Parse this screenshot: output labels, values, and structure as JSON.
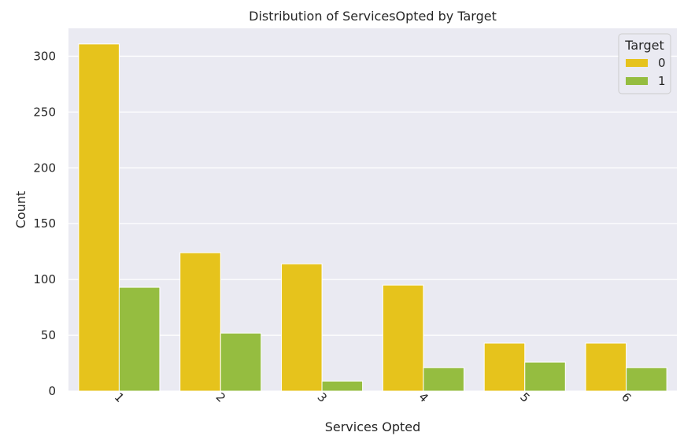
{
  "chart_data": {
    "type": "bar",
    "title": "Distribution of ServicesOpted by Target",
    "xlabel": "Services Opted",
    "ylabel": "Count",
    "categories": [
      "1",
      "2",
      "3",
      "4",
      "5",
      "6"
    ],
    "series": [
      {
        "name": "0",
        "color": "#e6c31c",
        "values": [
          311,
          124,
          114,
          95,
          43,
          43
        ]
      },
      {
        "name": "1",
        "color": "#95bd40",
        "values": [
          93,
          52,
          9,
          21,
          26,
          21
        ]
      }
    ],
    "ylim": [
      0,
      325
    ],
    "yticks": [
      0,
      50,
      100,
      150,
      200,
      250,
      300
    ],
    "grid": true,
    "legend": {
      "title": "Target",
      "placement": "top-right"
    },
    "plot_background": "#eaeaf2",
    "xtick_rotation": 45
  }
}
